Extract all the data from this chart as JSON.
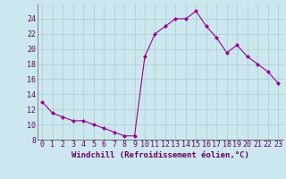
{
  "x": [
    0,
    1,
    2,
    3,
    4,
    5,
    6,
    7,
    8,
    9,
    10,
    11,
    12,
    13,
    14,
    15,
    16,
    17,
    18,
    19,
    20,
    21,
    22,
    23
  ],
  "y": [
    13,
    11.5,
    11,
    10.5,
    10.5,
    10,
    9.5,
    9,
    8.5,
    8.5,
    19,
    22,
    23,
    24,
    24,
    25,
    23,
    21.5,
    19.5,
    20.5,
    19,
    18,
    17,
    15.5
  ],
  "line_color": "#990099",
  "marker": "D",
  "marker_size": 2,
  "bg_color": "#cce8ee",
  "grid_color": "#aacccc",
  "xlabel": "Windchill (Refroidissement éolien,°C)",
  "xlabel_fontsize": 6.5,
  "tick_fontsize": 6,
  "ylim": [
    8,
    26
  ],
  "xlim": [
    -0.5,
    23.5
  ],
  "yticks": [
    8,
    10,
    12,
    14,
    16,
    18,
    20,
    22,
    24
  ],
  "xticks": [
    0,
    1,
    2,
    3,
    4,
    5,
    6,
    7,
    8,
    9,
    10,
    11,
    12,
    13,
    14,
    15,
    16,
    17,
    18,
    19,
    20,
    21,
    22,
    23
  ],
  "spine_color": "#666666",
  "line_width": 0.8
}
